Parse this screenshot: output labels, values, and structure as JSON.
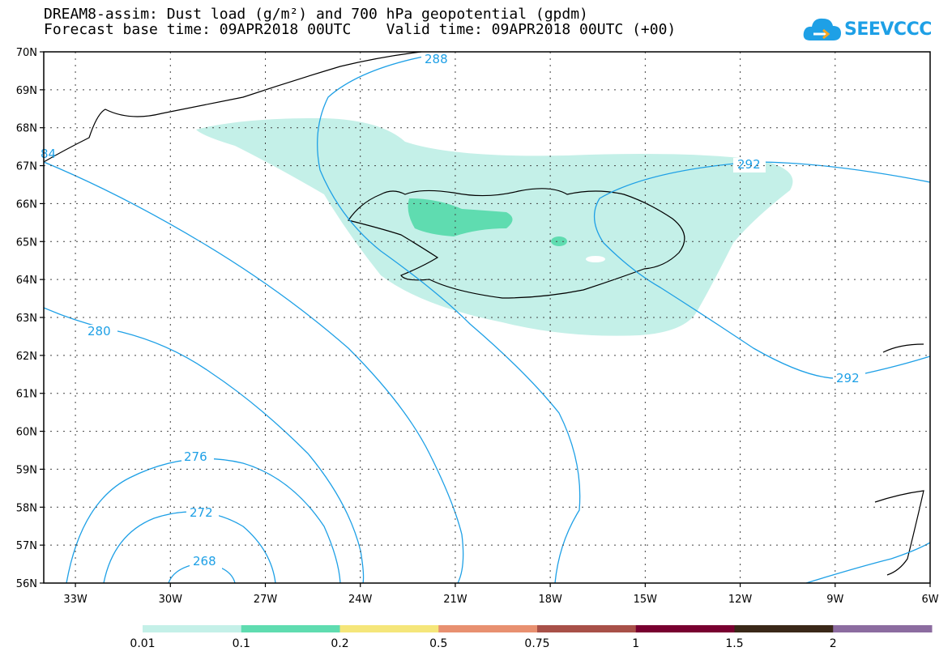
{
  "header": {
    "line1": "DREAM8-assim: Dust load (g/m²) and 700 hPa geopotential (gpdm)",
    "line2": "Forecast base time: 09APR2018 00UTC    Valid time: 09APR2018 00UTC (+00)"
  },
  "logo": {
    "text": "SEEVCCC",
    "icon": "cloud-icon",
    "color": "#1ea0e6"
  },
  "map": {
    "lon_range": [
      -34,
      -6
    ],
    "lat_range": [
      56,
      70
    ],
    "lon_ticks": [
      "33W",
      "30W",
      "27W",
      "24W",
      "21W",
      "18W",
      "15W",
      "12W",
      "9W",
      "6W"
    ],
    "lat_ticks": [
      "70N",
      "69N",
      "68N",
      "67N",
      "66N",
      "65N",
      "64N",
      "63N",
      "62N",
      "61N",
      "60N",
      "59N",
      "58N",
      "57N",
      "56N"
    ],
    "contour_color": "#1ea0e6",
    "contour_labels": [
      "288",
      "292",
      "292",
      "280",
      "276",
      "272",
      "268",
      "84"
    ]
  },
  "colorbar": {
    "colors": [
      "#c4f0e8",
      "#5fdcb0",
      "#f5e67a",
      "#e89070",
      "#a85048",
      "#780030",
      "#3a2818",
      "#8c6ca0"
    ],
    "labels": [
      "0.01",
      "0.1",
      "0.2",
      "0.5",
      "0.75",
      "1",
      "1.5",
      "2"
    ]
  }
}
